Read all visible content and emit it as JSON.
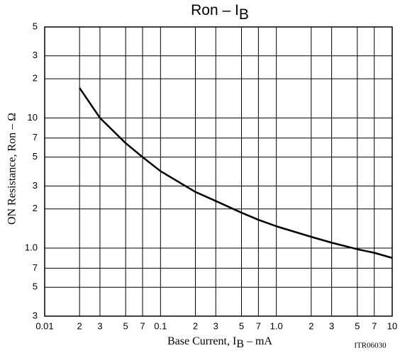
{
  "chart_data": {
    "type": "line",
    "title": {
      "text": "Ron  –  I",
      "subscript": "B"
    },
    "x_label": {
      "text": "Base Current, I",
      "subscript": "B",
      "after": "  –  mA"
    },
    "y_label": "ON Resistance, Ron  –  Ω",
    "annotation": "ITR06030",
    "x_scale": "log",
    "y_scale": "log",
    "grid": true,
    "xlim": [
      0.01,
      10
    ],
    "ylim": [
      0.3,
      50
    ],
    "xticks": [
      0.01,
      {
        "value": 0.02,
        "label": "2"
      },
      {
        "value": 0.03,
        "label": "3"
      },
      {
        "value": 0.05,
        "label": "5"
      },
      {
        "value": 0.07,
        "label": "7"
      },
      0.1,
      {
        "value": 0.2,
        "label": "2"
      },
      {
        "value": 0.3,
        "label": "3"
      },
      {
        "value": 0.5,
        "label": "5"
      },
      {
        "value": 0.7,
        "label": "7"
      },
      {
        "value": 1,
        "label": "1.0"
      },
      2,
      3,
      5,
      7,
      10
    ],
    "yticks": [
      {
        "value": 50,
        "label": "5"
      },
      {
        "value": 30,
        "label": "3"
      },
      {
        "value": 20,
        "label": "2"
      },
      10,
      7,
      5,
      3,
      2,
      {
        "value": 1,
        "label": "1.0"
      },
      {
        "value": 0.7,
        "label": "7"
      },
      {
        "value": 0.5,
        "label": "5"
      },
      {
        "value": 0.3,
        "label": "3"
      }
    ],
    "x": [
      0.02,
      0.03,
      0.05,
      0.07,
      0.1,
      0.2,
      0.3,
      0.5,
      0.7,
      1,
      2,
      3,
      5,
      7,
      10
    ],
    "series": [
      {
        "color": "#000000",
        "values": [
          17,
          10,
          6.4,
          5.0,
          3.9,
          2.7,
          2.3,
          1.87,
          1.65,
          1.47,
          1.22,
          1.1,
          0.98,
          0.92,
          0.84
        ]
      }
    ]
  }
}
